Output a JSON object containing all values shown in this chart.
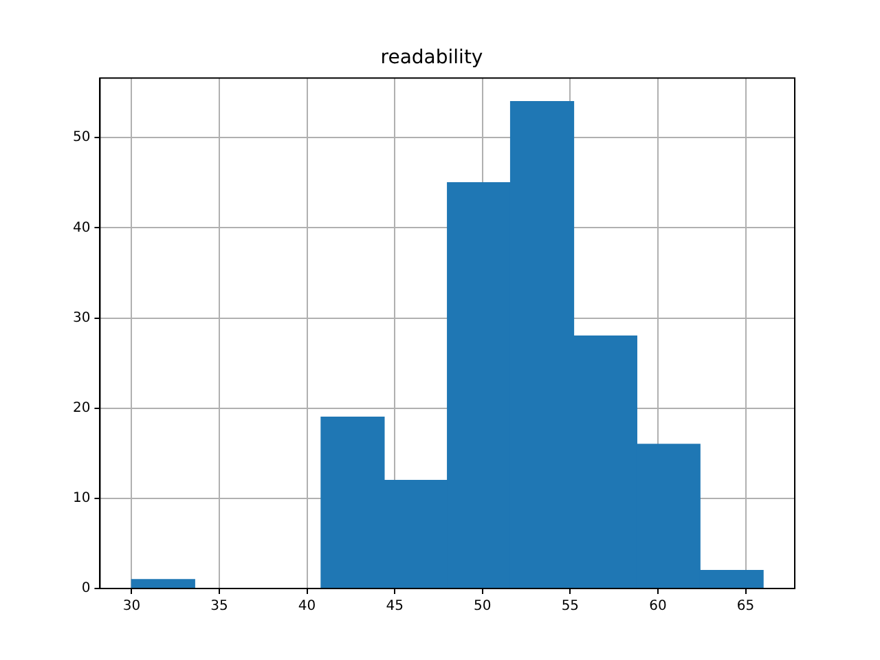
{
  "chart_data": {
    "type": "histogram",
    "title": "readability",
    "bins": [
      30,
      33.6,
      37.2,
      40.8,
      44.4,
      48,
      51.6,
      55.2,
      58.8,
      62.4,
      66
    ],
    "values": [
      1,
      0,
      0,
      19,
      12,
      45,
      54,
      28,
      16,
      2
    ],
    "color": "#1f77b4",
    "xlim": [
      28.2,
      67.8
    ],
    "xticks": [
      30,
      35,
      40,
      45,
      50,
      55,
      60,
      65
    ],
    "ylim": [
      0,
      56.6
    ],
    "yticks": [
      0,
      10,
      20,
      30,
      40,
      50
    ],
    "grid": true
  }
}
